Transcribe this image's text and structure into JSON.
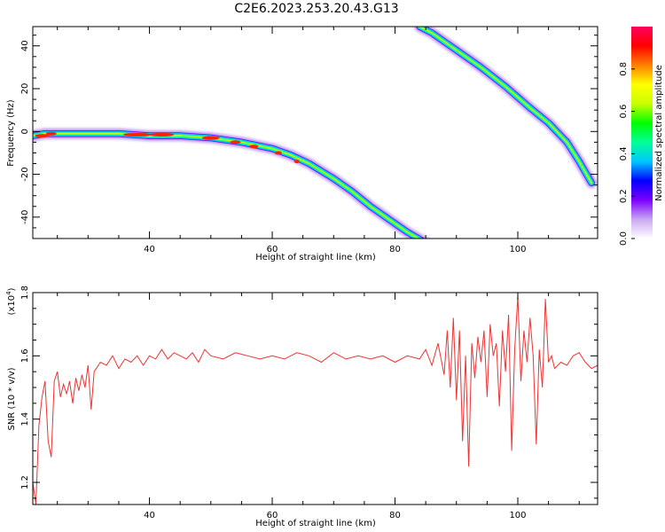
{
  "title": "C2E6.2023.253.20.43.G13",
  "chart_data": [
    {
      "type": "heatmap",
      "xlabel": "Height of straight line (km)",
      "ylabel": "Frequency (Hz)",
      "xlim": [
        21,
        113
      ],
      "ylim": [
        -50,
        49
      ],
      "xticks": [
        40,
        60,
        80,
        100
      ],
      "yticks": [
        -40,
        -20,
        0,
        20,
        40
      ],
      "colorbar": {
        "label": "Normalized spectral amplitude",
        "range": [
          0,
          1
        ],
        "ticks": [
          0.0,
          0.2,
          0.4,
          0.6,
          0.8
        ],
        "colormap": [
          "#ffffff",
          "#c9a6f2",
          "#7b00ff",
          "#0000ff",
          "#00c8ff",
          "#00ff96",
          "#00ff00",
          "#c8ff00",
          "#ffff00",
          "#ff8000",
          "#ff0000",
          "#ff0060"
        ]
      },
      "traces": [
        {
          "x": [
            21,
            23,
            26,
            30,
            35,
            40,
            45,
            50,
            55,
            60,
            63,
            66,
            70,
            73,
            76,
            79,
            82,
            85
          ],
          "y": [
            -2,
            -1,
            -1,
            -1,
            -1,
            -2,
            -2,
            -3,
            -5,
            -8,
            -11,
            -15,
            -22,
            -28,
            -35,
            -41,
            -47,
            -52
          ]
        },
        {
          "x": [
            84,
            86,
            90,
            94,
            98,
            102,
            105,
            108,
            110,
            112
          ],
          "y": [
            49,
            46,
            38,
            30,
            21,
            11,
            4,
            -5,
            -14,
            -24
          ]
        }
      ]
    },
    {
      "type": "line",
      "xlabel": "Height of straight line (km)",
      "ylabel": "SNR (10 * v/v)",
      "multiplier_label": "(x10",
      "multiplier_exp": "4",
      "xlim": [
        21,
        113
      ],
      "ylim": [
        1.13,
        1.8
      ],
      "xticks": [
        40,
        60,
        80,
        100
      ],
      "yticks": [
        1.2,
        1.4,
        1.6,
        1.8
      ],
      "color": "#ee3333",
      "series": [
        {
          "x": [
            21,
            21.5,
            22,
            22.5,
            23,
            23.5,
            24,
            24.5,
            25,
            25.5,
            26,
            26.5,
            27,
            27.5,
            28,
            28.5,
            29,
            29.5,
            30,
            30.5,
            31,
            32,
            33,
            34,
            35,
            36,
            37,
            38,
            39,
            40,
            41,
            42,
            43,
            44,
            45,
            46,
            47,
            48,
            49,
            50,
            52,
            54,
            56,
            58,
            60,
            62,
            64,
            66,
            68,
            70,
            72,
            74,
            76,
            78,
            80,
            82,
            84,
            85,
            86,
            87,
            88,
            88.5,
            89,
            89.5,
            90,
            90.5,
            91,
            91.5,
            92,
            92.5,
            93,
            93.5,
            94,
            94.5,
            95,
            95.5,
            96,
            96.5,
            97,
            97.5,
            98,
            98.5,
            99,
            99.5,
            100,
            100.5,
            101,
            101.5,
            102,
            102.5,
            103,
            103.5,
            104,
            104.5,
            105,
            105.5,
            106,
            107,
            108,
            109,
            110,
            111,
            112,
            113
          ],
          "y": [
            1.2,
            1.13,
            1.38,
            1.47,
            1.52,
            1.33,
            1.28,
            1.52,
            1.55,
            1.47,
            1.51,
            1.48,
            1.52,
            1.45,
            1.53,
            1.49,
            1.54,
            1.5,
            1.57,
            1.43,
            1.55,
            1.58,
            1.57,
            1.6,
            1.56,
            1.59,
            1.58,
            1.6,
            1.57,
            1.6,
            1.59,
            1.62,
            1.59,
            1.61,
            1.6,
            1.59,
            1.61,
            1.58,
            1.62,
            1.6,
            1.59,
            1.61,
            1.6,
            1.59,
            1.6,
            1.59,
            1.61,
            1.6,
            1.58,
            1.61,
            1.59,
            1.6,
            1.59,
            1.6,
            1.58,
            1.6,
            1.59,
            1.62,
            1.57,
            1.64,
            1.54,
            1.68,
            1.5,
            1.72,
            1.46,
            1.68,
            1.33,
            1.6,
            1.25,
            1.64,
            1.53,
            1.66,
            1.58,
            1.68,
            1.47,
            1.7,
            1.6,
            1.64,
            1.44,
            1.68,
            1.55,
            1.73,
            1.3,
            1.62,
            1.79,
            1.52,
            1.68,
            1.58,
            1.72,
            1.6,
            1.32,
            1.62,
            1.5,
            1.78,
            1.58,
            1.6,
            1.56,
            1.58,
            1.57,
            1.6,
            1.61,
            1.58,
            1.56,
            1.57
          ]
        }
      ]
    }
  ]
}
